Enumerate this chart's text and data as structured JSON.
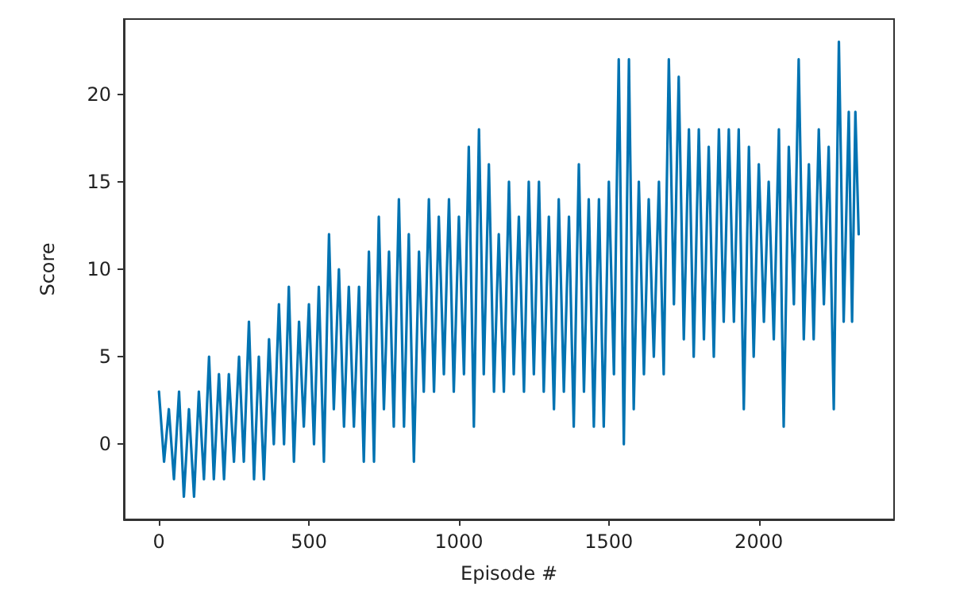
{
  "chart_data": {
    "type": "line",
    "xlabel": "Episode #",
    "ylabel": "Score",
    "grid": false,
    "marker": "none",
    "line_style": "solid",
    "xlim": [
      -117,
      2451
    ],
    "xticks": [
      0,
      500,
      1000,
      1500,
      2000
    ],
    "ylim": [
      -4.3,
      24.3
    ],
    "yticks": [
      0,
      5,
      10,
      15,
      20
    ],
    "x": [
      0,
      17,
      33,
      50,
      67,
      83,
      100,
      117,
      133,
      150,
      167,
      183,
      200,
      217,
      233,
      250,
      267,
      283,
      300,
      317,
      333,
      350,
      367,
      383,
      400,
      417,
      433,
      450,
      467,
      483,
      500,
      517,
      533,
      550,
      567,
      583,
      600,
      617,
      633,
      650,
      667,
      683,
      700,
      717,
      733,
      750,
      767,
      783,
      800,
      817,
      833,
      850,
      867,
      883,
      900,
      917,
      933,
      950,
      967,
      983,
      1000,
      1017,
      1033,
      1050,
      1067,
      1083,
      1100,
      1117,
      1133,
      1150,
      1167,
      1183,
      1200,
      1217,
      1233,
      1250,
      1267,
      1283,
      1300,
      1317,
      1333,
      1350,
      1367,
      1383,
      1400,
      1417,
      1433,
      1450,
      1467,
      1483,
      1500,
      1517,
      1533,
      1550,
      1567,
      1583,
      1600,
      1617,
      1633,
      1650,
      1667,
      1683,
      1700,
      1717,
      1733,
      1750,
      1767,
      1783,
      1800,
      1817,
      1833,
      1850,
      1867,
      1883,
      1900,
      1917,
      1933,
      1950,
      1967,
      1983,
      2000,
      2017,
      2033,
      2050,
      2067,
      2083,
      2100,
      2117,
      2133,
      2150,
      2167,
      2183,
      2200,
      2217,
      2233,
      2250,
      2267,
      2283,
      2300,
      2311,
      2322,
      2333
    ],
    "series": [
      {
        "color": "#0173b2",
        "values": [
          3,
          -1,
          2,
          -2,
          3,
          -3,
          2,
          -3,
          3,
          -2,
          5,
          -2,
          4,
          -2,
          4,
          -1,
          5,
          -1,
          7,
          -2,
          5,
          -2,
          6,
          0,
          8,
          0,
          9,
          -1,
          7,
          1,
          8,
          0,
          9,
          -1,
          12,
          2,
          10,
          1,
          9,
          1,
          9,
          -1,
          11,
          -1,
          13,
          2,
          11,
          1,
          14,
          1,
          12,
          -1,
          11,
          3,
          14,
          3,
          13,
          4,
          14,
          3,
          13,
          4,
          17,
          1,
          18,
          4,
          16,
          3,
          12,
          3,
          15,
          4,
          13,
          3,
          15,
          4,
          15,
          3,
          13,
          2,
          14,
          3,
          13,
          1,
          16,
          3,
          14,
          1,
          14,
          1,
          15,
          4,
          22,
          0,
          22,
          2,
          15,
          4,
          14,
          5,
          15,
          4,
          22,
          8,
          21,
          6,
          18,
          5,
          18,
          6,
          17,
          5,
          18,
          7,
          18,
          7,
          18,
          2,
          17,
          5,
          16,
          7,
          15,
          6,
          18,
          1,
          17,
          8,
          22,
          6,
          16,
          6,
          18,
          8,
          17,
          2,
          23,
          7,
          19,
          7,
          19,
          12
        ]
      }
    ]
  }
}
